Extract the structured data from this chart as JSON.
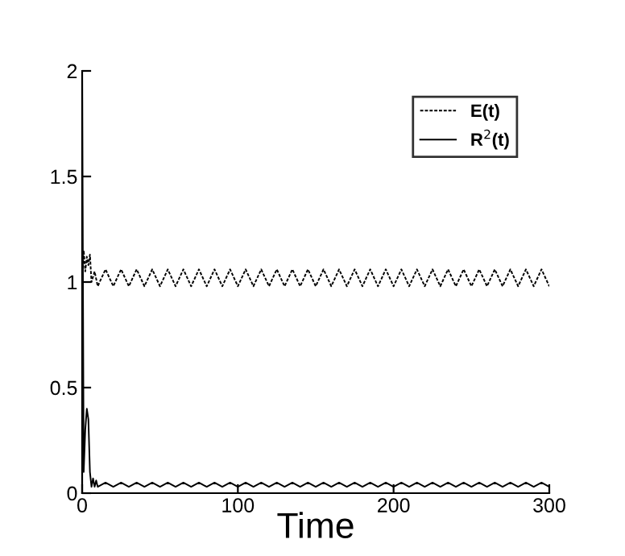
{
  "chart_data": {
    "type": "line",
    "xlabel": "Time",
    "xlim": [
      0,
      300
    ],
    "ylim": [
      0,
      2
    ],
    "xticks": [
      0,
      100,
      200,
      300
    ],
    "yticks": [
      0,
      0.5,
      1,
      1.5,
      2
    ],
    "grid": false,
    "legend": "top right",
    "marker": "none",
    "series": [
      {
        "name": "E(t)",
        "color": "#000000",
        "line_style": "dashed",
        "x": [
          0,
          1,
          2,
          3,
          4,
          5,
          6,
          8,
          10,
          15,
          20,
          25,
          30,
          35,
          40,
          45,
          50,
          55,
          60,
          65,
          70,
          75,
          80,
          85,
          90,
          95,
          100,
          105,
          110,
          115,
          120,
          125,
          130,
          135,
          140,
          145,
          150,
          155,
          160,
          165,
          170,
          175,
          180,
          185,
          190,
          195,
          200,
          205,
          210,
          215,
          220,
          225,
          230,
          235,
          240,
          245,
          250,
          255,
          260,
          265,
          270,
          275,
          280,
          285,
          290,
          295,
          300
        ],
        "values": [
          1.0,
          1.15,
          1.05,
          1.12,
          1.08,
          1.13,
          1.0,
          1.05,
          0.98,
          1.06,
          0.98,
          1.06,
          0.98,
          1.06,
          0.98,
          1.06,
          0.98,
          1.06,
          0.98,
          1.06,
          0.98,
          1.06,
          0.98,
          1.06,
          0.98,
          1.06,
          0.98,
          1.06,
          0.98,
          1.06,
          0.98,
          1.06,
          0.98,
          1.06,
          0.98,
          1.06,
          0.98,
          1.06,
          0.98,
          1.06,
          0.98,
          1.06,
          0.98,
          1.06,
          0.98,
          1.06,
          0.98,
          1.06,
          0.98,
          1.06,
          0.98,
          1.06,
          0.98,
          1.06,
          0.98,
          1.06,
          0.98,
          1.06,
          0.98,
          1.06,
          0.98,
          1.06,
          0.98,
          1.06,
          0.98,
          1.06,
          0.98
        ]
      },
      {
        "name": "R$^{2}$(t)",
        "color": "#000000",
        "line_style": "solid",
        "x": [
          0,
          1,
          2,
          3,
          4,
          5,
          6,
          7,
          8,
          9,
          10,
          15,
          20,
          25,
          30,
          35,
          40,
          45,
          50,
          55,
          60,
          65,
          70,
          75,
          80,
          85,
          90,
          95,
          100,
          105,
          110,
          115,
          120,
          125,
          130,
          135,
          140,
          145,
          150,
          155,
          160,
          165,
          170,
          175,
          180,
          185,
          190,
          195,
          200,
          205,
          210,
          215,
          220,
          225,
          230,
          235,
          240,
          245,
          250,
          255,
          260,
          265,
          270,
          275,
          280,
          285,
          290,
          295,
          300
        ],
        "values": [
          2,
          0.1,
          0.3,
          0.4,
          0.35,
          0.1,
          0.03,
          0.07,
          0.03,
          0.06,
          0.03,
          0.05,
          0.03,
          0.05,
          0.03,
          0.05,
          0.03,
          0.05,
          0.03,
          0.05,
          0.03,
          0.05,
          0.03,
          0.05,
          0.03,
          0.05,
          0.03,
          0.05,
          0.03,
          0.05,
          0.03,
          0.05,
          0.03,
          0.05,
          0.03,
          0.05,
          0.03,
          0.05,
          0.03,
          0.05,
          0.03,
          0.05,
          0.03,
          0.05,
          0.03,
          0.05,
          0.03,
          0.05,
          0.03,
          0.05,
          0.03,
          0.05,
          0.03,
          0.05,
          0.03,
          0.05,
          0.03,
          0.05,
          0.03,
          0.05,
          0.03,
          0.05,
          0.03,
          0.05,
          0.03,
          0.05,
          0.03,
          0.05,
          0.03
        ]
      }
    ]
  }
}
